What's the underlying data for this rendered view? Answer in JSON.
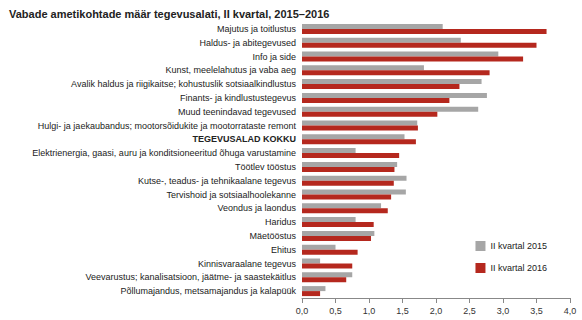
{
  "chart_data": {
    "type": "bar",
    "orientation": "horizontal",
    "title": "Vabade ametikohtade määr tegevusalati, II kvartal, 2015–2016",
    "categories": [
      "Majutus ja toitlustus",
      "Haldus- ja abitegevused",
      "Info ja side",
      "Kunst, meelelahutus ja vaba aeg",
      "Avalik haldus ja riigikaitse; kohustuslik sotsiaalkindlustus",
      "Finants- ja kindlustustegevus",
      "Muud teenindavad tegevused",
      "Hulgi- ja jaekaubandus; mootorsõidukite ja mootorrataste remont",
      "TEGEVUSALAD KOKKU",
      "Elektrienergia, gaasi, auru ja konditsioneeritud õhuga varustamine",
      "Töötlev tööstus",
      "Kutse-, teadus- ja tehnikaalane tegevus",
      "Tervishoid ja sotsiaalhoolekanne",
      "Veondus ja laondus",
      "Haridus",
      "Mäetööstus",
      "Ehitus",
      "Kinnisvaraalane tegevus",
      "Veevarustus; kanalisatsioon, jäätme- ja saastekäitlus",
      "Põllumajandus, metsamajandus ja kalapüük"
    ],
    "series": [
      {
        "name": "II kvartal 2015",
        "color": "#a6a6a6",
        "values": [
          2.1,
          2.37,
          2.93,
          1.82,
          2.68,
          2.76,
          2.63,
          1.72,
          1.53,
          0.8,
          1.42,
          1.56,
          1.55,
          1.18,
          0.8,
          1.08,
          0.5,
          0.27,
          0.75,
          0.35
        ]
      },
      {
        "name": "II kvartal 2016",
        "color": "#b5281e",
        "values": [
          3.65,
          3.5,
          3.3,
          2.8,
          2.35,
          2.2,
          2.02,
          1.73,
          1.7,
          1.45,
          1.38,
          1.37,
          1.33,
          1.28,
          1.07,
          1.03,
          0.83,
          0.75,
          0.66,
          0.27
        ]
      }
    ],
    "xlim": [
      0,
      4
    ],
    "xticks": [
      {
        "value": 0,
        "label": "0,0"
      },
      {
        "value": 0.5,
        "label": "0,5"
      },
      {
        "value": 1,
        "label": "1,0"
      },
      {
        "value": 1.5,
        "label": "1,5"
      },
      {
        "value": 2,
        "label": "2,0"
      },
      {
        "value": 2.5,
        "label": "2,5"
      },
      {
        "value": 3,
        "label": "3,0"
      },
      {
        "value": 3.5,
        "label": "3,5"
      },
      {
        "value": 4,
        "label": "4,0"
      }
    ],
    "grid": false,
    "legend": "lower right"
  }
}
